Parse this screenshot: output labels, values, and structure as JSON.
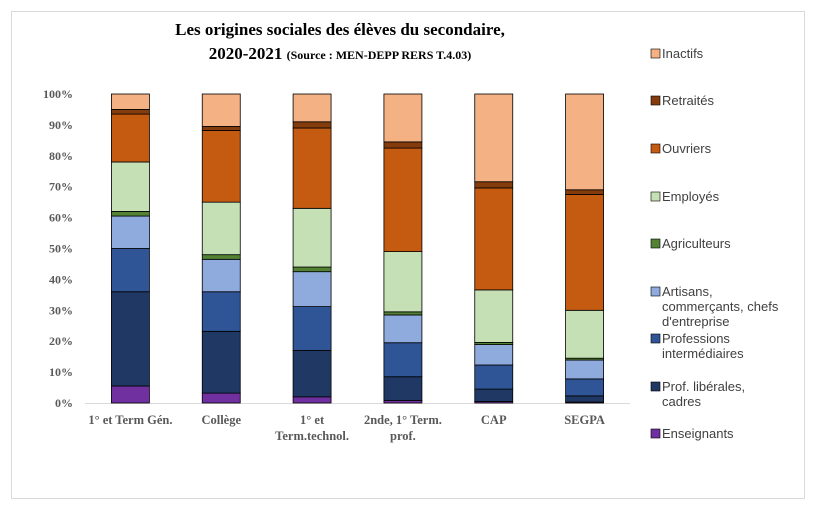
{
  "chart_data": {
    "type": "bar",
    "stacked": true,
    "title_line1": "Les origines sociales des élèves du secondaire,",
    "title_line2": "2020-2021",
    "title_source": "(Source : MEN-DEPP  RERS  T.4.03)",
    "ylim": [
      0,
      100
    ],
    "y_ticks": [
      "0%",
      "10%",
      "20%",
      "30%",
      "40%",
      "50%",
      "60%",
      "70%",
      "80%",
      "90%",
      "100%"
    ],
    "categories": [
      [
        "1° et Term Gén."
      ],
      [
        "Collège"
      ],
      [
        "1° et",
        "Term.technol."
      ],
      [
        "2nde, 1° Term.",
        "prof."
      ],
      [
        "CAP"
      ],
      [
        "SEGPA"
      ]
    ],
    "legend_position": "right",
    "series": [
      {
        "name": "Enseignants",
        "color": "#7030a0",
        "values": [
          5.5,
          3.2,
          2.0,
          0.8,
          0.5,
          0.3
        ]
      },
      {
        "name": "Prof. libérales, cadres",
        "color": "#203864",
        "values": [
          30.5,
          20.0,
          15.0,
          7.7,
          4.0,
          2.0
        ]
      },
      {
        "name": "Professions intermédiaires",
        "color": "#2f5597",
        "values": [
          14.0,
          12.8,
          14.2,
          11.0,
          7.8,
          5.5
        ]
      },
      {
        "name": "Artisans, commerçants, chefs d'entreprise",
        "color": "#8faadc",
        "values": [
          10.5,
          10.5,
          11.3,
          9.0,
          6.6,
          6.1
        ]
      },
      {
        "name": "Agriculteurs",
        "color": "#548235",
        "values": [
          1.5,
          1.5,
          1.5,
          1.0,
          0.7,
          0.6
        ]
      },
      {
        "name": "Employés",
        "color": "#c5e0b4",
        "values": [
          16.0,
          17.0,
          19.0,
          19.5,
          17.0,
          15.5
        ]
      },
      {
        "name": "Ouvriers",
        "color": "#c55a11",
        "values": [
          15.5,
          23.2,
          26.0,
          33.5,
          33.0,
          37.5
        ]
      },
      {
        "name": "Retraités",
        "color": "#843c0c",
        "values": [
          1.5,
          1.3,
          2.0,
          2.0,
          2.0,
          1.5
        ]
      },
      {
        "name": "Inactifs",
        "color": "#f4b183",
        "values": [
          5.0,
          10.5,
          9.0,
          15.5,
          28.4,
          31.0
        ]
      }
    ],
    "legend_order": [
      {
        "series": 8,
        "lines": [
          "Inactifs"
        ]
      },
      {
        "series": 7,
        "lines": [
          "Retraités"
        ]
      },
      {
        "series": 6,
        "lines": [
          "Ouvriers"
        ]
      },
      {
        "series": 5,
        "lines": [
          "Employés"
        ]
      },
      {
        "series": 4,
        "lines": [
          "Agriculteurs"
        ]
      },
      {
        "series": 3,
        "lines": [
          "Artisans,",
          "commerçants, chefs",
          "d'entreprise"
        ]
      },
      {
        "series": 2,
        "lines": [
          "Professions",
          "intermédiaires"
        ]
      },
      {
        "series": 1,
        "lines": [
          "Prof. libérales,",
          "cadres"
        ]
      },
      {
        "series": 0,
        "lines": [
          "Enseignants"
        ]
      }
    ]
  }
}
